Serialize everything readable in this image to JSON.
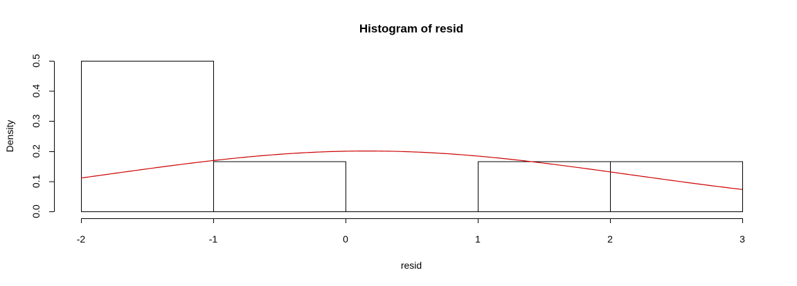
{
  "chart_data": {
    "type": "bar",
    "subtype": "histogram",
    "title": "Histogram of resid",
    "xlabel": "resid",
    "ylabel": "Density",
    "xlim": [
      -2,
      3
    ],
    "ylim": [
      0,
      0.5
    ],
    "x_ticks": [
      -2,
      -1,
      0,
      1,
      2,
      3
    ],
    "x_tick_labels": [
      "-2",
      "-1",
      "0",
      "1",
      "2",
      "3"
    ],
    "y_ticks": [
      0,
      0.1,
      0.2,
      0.3,
      0.4,
      0.5
    ],
    "y_tick_labels": [
      "0.0",
      "0.1",
      "0.2",
      "0.3",
      "0.4",
      "0.5"
    ],
    "bins": [
      {
        "from": -2,
        "to": -1,
        "density": 0.5
      },
      {
        "from": -1,
        "to": 0,
        "density": 0.1667
      },
      {
        "from": 0,
        "to": 1,
        "density": 0
      },
      {
        "from": 1,
        "to": 2,
        "density": 0.1667
      },
      {
        "from": 2,
        "to": 3,
        "density": 0.1667
      }
    ],
    "overlay_curve": {
      "type": "normal_density",
      "mean": 0.1667,
      "sd": 1.99,
      "color": "#cc0000"
    },
    "grid": false,
    "legend": "none",
    "bar_fill": "none",
    "bar_stroke": "#000000"
  }
}
